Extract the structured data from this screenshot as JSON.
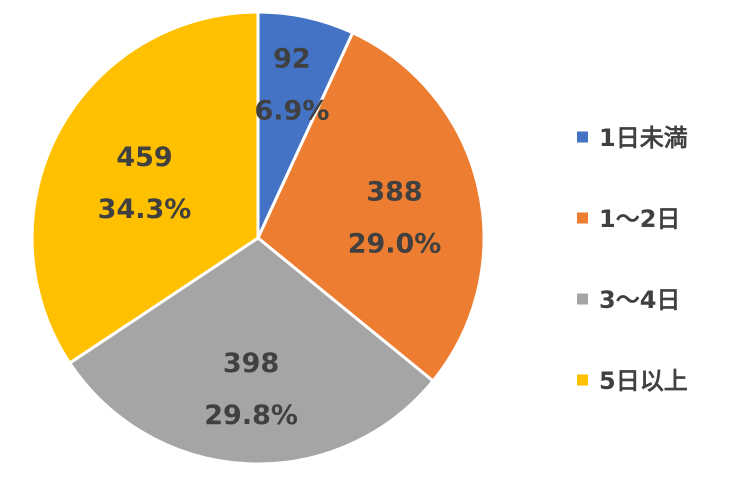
{
  "chart_data": {
    "type": "pie",
    "categories": [
      "1日未満",
      "1〜2日",
      "3〜4日",
      "5日以上"
    ],
    "values": [
      92,
      388,
      398,
      459
    ],
    "percent_labels": [
      "6.9%",
      "29.0%",
      "29.8%",
      "34.3%"
    ],
    "colors": [
      "#4472C4",
      "#ED7D31",
      "#A5A5A5",
      "#FFC000"
    ],
    "legend_position": "right",
    "start": "top, clockwise"
  }
}
